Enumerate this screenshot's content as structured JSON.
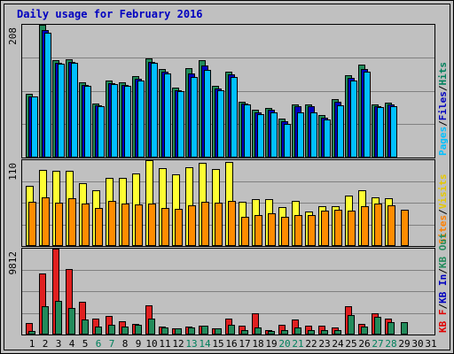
{
  "chart_data": {
    "type": "bar",
    "title": "Daily usage for February 2016",
    "days": [
      "1",
      "2",
      "3",
      "4",
      "5",
      "6",
      "7",
      "8",
      "9",
      "10",
      "11",
      "12",
      "13",
      "14",
      "15",
      "16",
      "17",
      "18",
      "19",
      "20",
      "21",
      "22",
      "23",
      "24",
      "25",
      "26",
      "27",
      "28",
      "29",
      "30",
      "31"
    ],
    "weekend_days": [
      "6",
      "7",
      "13",
      "14",
      "20",
      "21",
      "27",
      "28"
    ],
    "panels": [
      {
        "id": "hits",
        "ytick": "208",
        "ylim": [
          0,
          208
        ],
        "labels": [
          {
            "text": "Hits",
            "color": "#00805C"
          },
          {
            "text": "/",
            "color": "#000000"
          },
          {
            "text": "Files",
            "color": "#0000C0"
          },
          {
            "text": "/",
            "color": "#000000"
          },
          {
            "text": "Pages",
            "color": "#00C0FF"
          }
        ],
        "series": [
          {
            "name": "Hits",
            "color": "#228B5B",
            "values": [
              100,
              208,
              153,
              154,
              118,
              85,
              120,
              118,
              128,
              155,
              139,
              110,
              140,
              153,
              112,
              135,
              88,
              75,
              78,
              61,
              83,
              83,
              66,
              92,
              129,
              145,
              83,
              86,
              null,
              null,
              null
            ]
          },
          {
            "name": "Files",
            "color": "#0000C0",
            "values": [
              96,
              200,
              148,
              150,
              114,
              82,
              116,
              114,
              124,
              150,
              134,
              106,
              132,
              144,
              108,
              130,
              84,
              71,
              75,
              57,
              80,
              80,
              62,
              88,
              125,
              138,
              80,
              83,
              null,
              null,
              null
            ]
          },
          {
            "name": "Pages",
            "color": "#00BFFF",
            "values": [
              95,
              195,
              147,
              148,
              113,
              81,
              115,
              112,
              121,
              148,
              132,
              104,
              126,
              137,
              105,
              126,
              83,
              68,
              71,
              53,
              71,
              71,
              60,
              82,
              121,
              135,
              79,
              81,
              null,
              null,
              null
            ]
          }
        ]
      },
      {
        "id": "visits",
        "ytick": "110",
        "ylim": [
          0,
          110
        ],
        "labels": [
          {
            "text": "Visits",
            "color": "#E6C800"
          },
          {
            "text": "/",
            "color": "#000000"
          },
          {
            "text": "Sites",
            "color": "#FF8000"
          }
        ],
        "series": [
          {
            "name": "Visits",
            "color": "#FFFF33",
            "values": [
              77,
              97,
              96,
              96,
              81,
              72,
              87,
              87,
              93,
              110,
              100,
              92,
              101,
              107,
              99,
              108,
              57,
              60,
              60,
              50,
              58,
              44,
              51,
              51,
              65,
              72,
              62,
              61,
              null,
              null,
              null
            ]
          },
          {
            "name": "Sites",
            "color": "#FF8C00",
            "values": [
              57,
              62,
              55,
              61,
              54,
              49,
              58,
              54,
              53,
              54,
              49,
              48,
              52,
              57,
              55,
              58,
              37,
              40,
              42,
              37,
              40,
              40,
              45,
              46,
              45,
              51,
              54,
              52,
              47,
              null,
              null
            ]
          }
        ]
      },
      {
        "id": "kbytes",
        "ytick": "9812",
        "ylim": [
          0,
          9812
        ],
        "labels": [
          {
            "text": "KB Out",
            "color": "#228B5B"
          },
          {
            "text": "/",
            "color": "#000000"
          },
          {
            "text": "KB In",
            "color": "#0000C0"
          },
          {
            "text": "/",
            "color": "#000000"
          },
          {
            "text": "KB F",
            "color": "#E00000"
          }
        ],
        "series": [
          {
            "name": "KB F",
            "color": "#E02020",
            "values": [
              1300,
              7000,
              9812,
              7500,
              3700,
              1800,
              2100,
              1500,
              1200,
              3300,
              900,
              700,
              900,
              1000,
              700,
              1800,
              1000,
              2400,
              500,
              1100,
              1700,
              1000,
              1000,
              800,
              3200,
              1200,
              2400,
              1800,
              null,
              null,
              null
            ]
          },
          {
            "name": "KB Out",
            "color": "#228B5B",
            "values": [
              400,
              3200,
              3800,
              3000,
              1700,
              900,
              1100,
              900,
              1100,
              1800,
              800,
              700,
              800,
              1000,
              700,
              1100,
              500,
              800,
              400,
              500,
              800,
              500,
              500,
              500,
              2200,
              900,
              2000,
              1400,
              1400,
              null,
              null
            ]
          }
        ]
      }
    ]
  }
}
